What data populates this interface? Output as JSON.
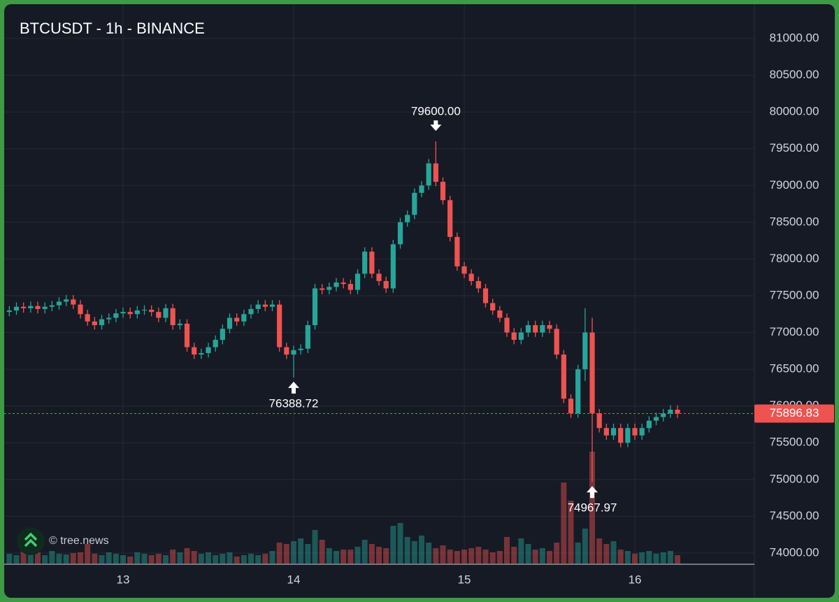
{
  "chart_data": {
    "type": "candlestick",
    "title": "BTCUSDT - 1h - BINANCE",
    "watermark": "© tree.news",
    "categories": [
      null,
      null,
      null,
      null,
      null,
      null,
      null,
      null,
      null,
      null,
      null,
      null,
      null,
      null,
      null,
      null,
      "13",
      null,
      null,
      null,
      null,
      null,
      null,
      null,
      null,
      null,
      null,
      null,
      null,
      null,
      null,
      null,
      null,
      null,
      null,
      null,
      null,
      null,
      null,
      null,
      "14",
      null,
      null,
      null,
      null,
      null,
      null,
      null,
      null,
      null,
      null,
      null,
      null,
      null,
      null,
      null,
      null,
      null,
      null,
      null,
      null,
      null,
      null,
      null,
      "15",
      null,
      null,
      null,
      null,
      null,
      null,
      null,
      null,
      null,
      null,
      null,
      null,
      null,
      null,
      null,
      null,
      null,
      null,
      null,
      null,
      null,
      null,
      null,
      "16",
      null,
      null,
      null,
      null,
      null,
      null
    ],
    "open": [
      77280,
      77300,
      77350,
      77330,
      77360,
      77320,
      77350,
      77370,
      77420,
      77450,
      77380,
      77250,
      77150,
      77100,
      77180,
      77200,
      77260,
      77280,
      77250,
      77300,
      77310,
      77280,
      77200,
      77330,
      77100,
      77120,
      76800,
      76700,
      76720,
      76800,
      76900,
      77050,
      77200,
      77150,
      77250,
      77320,
      77380,
      77350,
      77380,
      76800,
      76700,
      76760,
      76780,
      77100,
      77600,
      77580,
      77620,
      77680,
      77660,
      77580,
      77800,
      78100,
      77800,
      77700,
      77600,
      78200,
      78500,
      78600,
      78900,
      79000,
      79300,
      79050,
      78800,
      78300,
      77900,
      77800,
      77700,
      77600,
      77400,
      77300,
      77200,
      77000,
      76900,
      77000,
      77100,
      77000,
      77100,
      77050,
      76700,
      76100,
      75900,
      76500,
      77000,
      75900,
      75700,
      75600,
      75700,
      75500,
      75700,
      75600,
      75700,
      75800,
      75850,
      75900,
      75950
    ],
    "high": [
      77360,
      77410,
      77410,
      77420,
      77420,
      77410,
      77430,
      77480,
      77510,
      77510,
      77440,
      77310,
      77210,
      77240,
      77260,
      77320,
      77340,
      77340,
      77360,
      77370,
      77370,
      77340,
      77390,
      77390,
      77180,
      77180,
      76860,
      76780,
      76860,
      76960,
      77110,
      77260,
      77260,
      77310,
      77380,
      77440,
      77440,
      77440,
      77440,
      76860,
      76820,
      76840,
      77160,
      77660,
      77660,
      77680,
      77740,
      77740,
      77720,
      77860,
      78160,
      78160,
      77860,
      77760,
      78260,
      78560,
      78660,
      78960,
      79060,
      79360,
      79600,
      79110,
      78860,
      78360,
      77960,
      77860,
      77760,
      77660,
      77460,
      77360,
      77260,
      77060,
      77060,
      77160,
      77160,
      77160,
      77160,
      77110,
      76760,
      76160,
      76560,
      77330,
      77200,
      75960,
      75760,
      75760,
      75760,
      75760,
      75760,
      75760,
      75860,
      75910,
      75960,
      76010,
      76010
    ],
    "low": [
      77220,
      77240,
      77270,
      77270,
      77260,
      77260,
      77290,
      77310,
      77360,
      77320,
      77190,
      77090,
      77040,
      77040,
      77120,
      77140,
      77200,
      77190,
      77190,
      77240,
      77220,
      77140,
      77140,
      77040,
      77040,
      76740,
      76640,
      76640,
      76660,
      76740,
      76840,
      76990,
      77090,
      77090,
      77190,
      77260,
      77290,
      77290,
      76740,
      76640,
      76388.72,
      76700,
      76720,
      77040,
      77520,
      77520,
      77560,
      77600,
      77520,
      77520,
      77740,
      77740,
      77640,
      77540,
      77540,
      78140,
      78440,
      78540,
      78840,
      78940,
      78990,
      78740,
      78240,
      77840,
      77740,
      77640,
      77540,
      77340,
      77240,
      77140,
      76940,
      76840,
      76840,
      76940,
      76940,
      76940,
      76990,
      76640,
      76040,
      75840,
      75840,
      76340,
      74967.97,
      75640,
      75540,
      75540,
      75440,
      75440,
      75540,
      75540,
      75640,
      75740,
      75790,
      75840,
      75836.83
    ],
    "close": [
      77300,
      77350,
      77330,
      77360,
      77320,
      77350,
      77370,
      77420,
      77450,
      77380,
      77250,
      77150,
      77100,
      77180,
      77200,
      77260,
      77280,
      77250,
      77300,
      77310,
      77280,
      77200,
      77330,
      77100,
      77120,
      76800,
      76700,
      76720,
      76800,
      76900,
      77050,
      77200,
      77150,
      77250,
      77320,
      77380,
      77350,
      77380,
      76800,
      76700,
      76760,
      76780,
      77100,
      77600,
      77580,
      77620,
      77680,
      77660,
      77580,
      77800,
      78100,
      77800,
      77700,
      77600,
      78200,
      78500,
      78600,
      78900,
      79000,
      79300,
      79050,
      78800,
      78300,
      77900,
      77800,
      77700,
      77600,
      77400,
      77300,
      77200,
      77000,
      76900,
      77000,
      77100,
      77000,
      77100,
      77050,
      76700,
      76100,
      75900,
      76500,
      77000,
      75900,
      75700,
      75600,
      75700,
      75500,
      75700,
      75600,
      75700,
      75800,
      75850,
      75900,
      75950,
      75896.83
    ],
    "volume": [
      14,
      12,
      18,
      15,
      16,
      12,
      18,
      14,
      13,
      15,
      16,
      28,
      14,
      12,
      16,
      14,
      12,
      10,
      16,
      14,
      12,
      14,
      12,
      20,
      16,
      22,
      18,
      14,
      16,
      12,
      14,
      16,
      10,
      12,
      14,
      12,
      14,
      18,
      30,
      28,
      32,
      36,
      28,
      48,
      34,
      22,
      18,
      20,
      20,
      24,
      34,
      28,
      24,
      22,
      54,
      58,
      38,
      32,
      40,
      30,
      22,
      26,
      20,
      18,
      20,
      22,
      24,
      20,
      16,
      18,
      38,
      24,
      36,
      28,
      20,
      22,
      18,
      30,
      116,
      90,
      30,
      50,
      160,
      36,
      28,
      32,
      20,
      18,
      14,
      16,
      18,
      14,
      16,
      18,
      12
    ],
    "up_color": "#26a69a",
    "down_color": "#ef5350",
    "ylim": [
      73857,
      81447
    ],
    "yticks": [
      {
        "value": 74000,
        "label": "74000.00"
      },
      {
        "value": 74500,
        "label": "74500.00"
      },
      {
        "value": 75000,
        "label": "75000.00"
      },
      {
        "value": 75500,
        "label": "75500.00"
      },
      {
        "value": 76000,
        "label": "76000.00"
      },
      {
        "value": 76500,
        "label": "76500.00"
      },
      {
        "value": 77000,
        "label": "77000.00"
      },
      {
        "value": 77500,
        "label": "77500.00"
      },
      {
        "value": 78000,
        "label": "78000.00"
      },
      {
        "value": 78500,
        "label": "78500.00"
      },
      {
        "value": 79000,
        "label": "79000.00"
      },
      {
        "value": 79500,
        "label": "79500.00"
      },
      {
        "value": 80000,
        "label": "80000.00"
      },
      {
        "value": 80500,
        "label": "80500.00"
      },
      {
        "value": 81000,
        "label": "81000.00"
      }
    ],
    "grid": true,
    "last_price": 75896.83,
    "annotations": [
      {
        "value": 79600,
        "label": "79600.00"
      },
      {
        "value": 76388.72,
        "label": "76388.72"
      },
      {
        "value": 74967.97,
        "label": "74967.97"
      }
    ]
  }
}
